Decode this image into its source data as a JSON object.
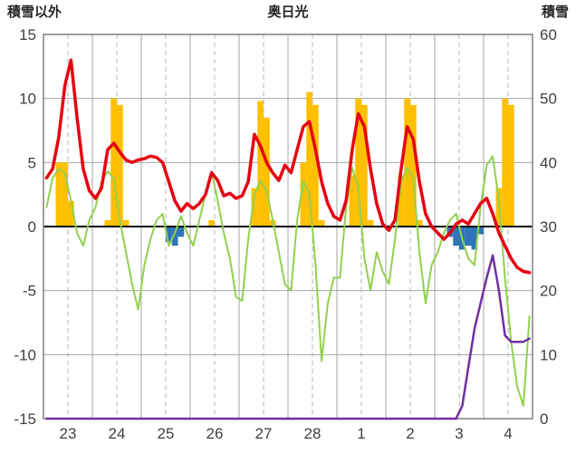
{
  "chart_data": {
    "type": "combo",
    "title": "奥日光",
    "left_axis": {
      "label": "積雪以外",
      "min": -15,
      "max": 15,
      "ticks": [
        15,
        10,
        5,
        0,
        -5,
        -10,
        -15
      ]
    },
    "right_axis": {
      "label": "積雪",
      "min": 0,
      "max": 60,
      "ticks": [
        60,
        50,
        40,
        30,
        20,
        10,
        0
      ]
    },
    "x_axis": {
      "day_labels": [
        "23",
        "24",
        "25",
        "26",
        "27",
        "28",
        "1",
        "2",
        "3",
        "4"
      ],
      "hours_per_day": 24,
      "points_per_day": 8
    },
    "colors": {
      "grid": "#A6A6A6",
      "dashed_grid": "#B4B4B4",
      "zero_line": "#000000",
      "border": "#7F7F7F",
      "text": "#404040"
    },
    "series": [
      {
        "name": "sunshine",
        "type": "bar",
        "axis": "left",
        "color": "#FFC000",
        "values": [
          0,
          0,
          5,
          5,
          2,
          0,
          0,
          0,
          0,
          0,
          0.5,
          10,
          9.5,
          0.5,
          0,
          0,
          0,
          0,
          0,
          0,
          0,
          0,
          0,
          0,
          0,
          0,
          0,
          0.5,
          0,
          0,
          0,
          0,
          0,
          0,
          3,
          9.8,
          8.5,
          0.5,
          0,
          0,
          0,
          0,
          5,
          10.5,
          9.5,
          0.5,
          0,
          0,
          0,
          0,
          4,
          10,
          9.5,
          0.5,
          0,
          0,
          0,
          0,
          4,
          10,
          9.5,
          0.5,
          0,
          0,
          0,
          0,
          0,
          0,
          0,
          0,
          0,
          0,
          0,
          0,
          3,
          10,
          9.5,
          0,
          0,
          0
        ]
      },
      {
        "name": "precipitation",
        "type": "bar",
        "axis": "left",
        "color": "#2E75B6",
        "values": [
          0,
          0,
          0,
          0,
          0,
          0,
          0,
          0,
          0,
          0,
          0,
          0,
          0,
          0,
          0,
          0,
          0,
          0,
          0,
          0,
          -1.2,
          -1.5,
          -0.8,
          0,
          0,
          0,
          0,
          0,
          0,
          0,
          0,
          0,
          0,
          0,
          0,
          0,
          0,
          0,
          0,
          0,
          0,
          0,
          0,
          0,
          0,
          0,
          0,
          0,
          0,
          0,
          0,
          0,
          0,
          0,
          0,
          0,
          0,
          0,
          0,
          0,
          0,
          0,
          0,
          0,
          0,
          0,
          -0.8,
          -1.5,
          -1.8,
          -1.5,
          -1.8,
          -0.6,
          0,
          0,
          0,
          0,
          0,
          0,
          0,
          0
        ]
      },
      {
        "name": "green-series",
        "type": "line",
        "axis": "left",
        "color": "#92D050",
        "width": 2,
        "values": [
          1.5,
          3.8,
          4.5,
          4.2,
          2.0,
          -0.5,
          -1.5,
          0.5,
          1.5,
          3.5,
          4.3,
          3.8,
          0.5,
          -2.0,
          -4.5,
          -6.5,
          -3.0,
          -1.0,
          0.5,
          1.0,
          -1.5,
          -0.5,
          0.8,
          -0.5,
          -1.5,
          0.5,
          2.5,
          4.3,
          2.0,
          -0.5,
          -2.5,
          -5.5,
          -5.8,
          -1.0,
          2.5,
          3.6,
          2.8,
          0.5,
          -2.0,
          -4.5,
          -5.0,
          0.5,
          3.6,
          2.5,
          -3.0,
          -10.5,
          -6.0,
          -4.0,
          -4.0,
          1.5,
          4.6,
          3.0,
          -2.5,
          -5.0,
          -2.0,
          -3.5,
          -4.5,
          -1.0,
          3.5,
          4.6,
          3.8,
          -2.0,
          -6.0,
          -3.0,
          -2.0,
          -0.5,
          0.5,
          1.0,
          -1.0,
          -2.5,
          -3.0,
          1.5,
          4.8,
          5.5,
          2.0,
          -4.0,
          -9.0,
          -12.5,
          -14.0,
          -7.0
        ]
      },
      {
        "name": "temperature",
        "type": "line",
        "axis": "left",
        "color": "#E60012",
        "width": 3.5,
        "values": [
          3.8,
          4.5,
          7.0,
          11.0,
          13.0,
          8.5,
          4.5,
          2.8,
          2.2,
          3.0,
          6.0,
          6.5,
          5.8,
          5.2,
          5.0,
          5.2,
          5.3,
          5.5,
          5.4,
          5.0,
          3.5,
          2.0,
          1.2,
          1.8,
          1.4,
          1.8,
          2.5,
          4.2,
          3.6,
          2.4,
          2.6,
          2.2,
          2.4,
          3.5,
          7.2,
          6.3,
          5.0,
          4.2,
          3.6,
          4.8,
          4.2,
          6.0,
          7.8,
          8.2,
          6.0,
          3.5,
          1.8,
          0.8,
          0.5,
          2.0,
          6.0,
          8.8,
          7.8,
          4.5,
          1.8,
          0.2,
          -0.3,
          0.5,
          4.5,
          7.8,
          6.8,
          3.5,
          1.0,
          0.0,
          -0.5,
          -1.0,
          -0.5,
          0.2,
          0.5,
          0.2,
          1.0,
          1.8,
          2.2,
          1.0,
          -0.5,
          -1.5,
          -2.5,
          -3.2,
          -3.5,
          -3.6
        ]
      },
      {
        "name": "snow-depth",
        "type": "line",
        "axis": "right",
        "color": "#7030A0",
        "width": 2.5,
        "values": [
          0,
          0,
          0,
          0,
          0,
          0,
          0,
          0,
          0,
          0,
          0,
          0,
          0,
          0,
          0,
          0,
          0,
          0,
          0,
          0,
          0,
          0,
          0,
          0,
          0,
          0,
          0,
          0,
          0,
          0,
          0,
          0,
          0,
          0,
          0,
          0,
          0,
          0,
          0,
          0,
          0,
          0,
          0,
          0,
          0,
          0,
          0,
          0,
          0,
          0,
          0,
          0,
          0,
          0,
          0,
          0,
          0,
          0,
          0,
          0,
          0,
          0,
          0,
          0,
          0,
          0,
          0,
          0,
          2,
          8,
          14,
          18,
          22,
          25.5,
          20,
          13,
          12,
          12,
          12,
          12.5
        ]
      }
    ]
  }
}
